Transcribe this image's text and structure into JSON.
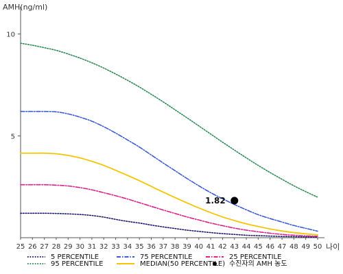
{
  "chart_data": {
    "type": "line",
    "title": "",
    "ylabel": "AMH(ng/ml)",
    "xlabel": "나이",
    "x": [
      25,
      26,
      27,
      28,
      29,
      30,
      31,
      32,
      33,
      34,
      35,
      36,
      37,
      38,
      39,
      40,
      41,
      42,
      43,
      44,
      45,
      46,
      47,
      48,
      49,
      50
    ],
    "x_tick_labels": [
      "25",
      "26",
      "27",
      "28",
      "29",
      "30",
      "31",
      "32",
      "33",
      "34",
      "35",
      "36",
      "37",
      "38",
      "39",
      "40",
      "41",
      "42",
      "43",
      "44",
      "45",
      "46",
      "47",
      "48",
      "49",
      "50"
    ],
    "y_ticks": [
      5,
      10
    ],
    "y_tick_labels": [
      "5",
      "10"
    ],
    "xlim": [
      25,
      50
    ],
    "ylim": [
      0,
      11
    ],
    "grid": false,
    "legend_position": "bottom",
    "series": [
      {
        "name": "5 PERCENTILE",
        "color": "#1a1a6e",
        "dash": "dot",
        "values": [
          1.2,
          1.2,
          1.2,
          1.19,
          1.17,
          1.14,
          1.09,
          1.01,
          0.9,
          0.8,
          0.72,
          0.62,
          0.53,
          0.45,
          0.37,
          0.31,
          0.25,
          0.2,
          0.16,
          0.12,
          0.1,
          0.08,
          0.06,
          0.05,
          0.04,
          0.03
        ]
      },
      {
        "name": "75 PERCENTILE",
        "color": "#3b5bd6",
        "dash": "dashdot",
        "values": [
          6.2,
          6.2,
          6.2,
          6.18,
          6.08,
          5.92,
          5.72,
          5.45,
          5.14,
          4.8,
          4.45,
          4.06,
          3.67,
          3.29,
          2.91,
          2.55,
          2.21,
          1.91,
          1.63,
          1.37,
          1.13,
          0.94,
          0.77,
          0.6,
          0.46,
          0.32
        ]
      },
      {
        "name": "25 PERCENTILE",
        "color": "#e0218a",
        "dash": "dashdot",
        "values": [
          2.6,
          2.6,
          2.6,
          2.58,
          2.54,
          2.46,
          2.35,
          2.21,
          2.06,
          1.9,
          1.72,
          1.54,
          1.36,
          1.19,
          1.02,
          0.87,
          0.72,
          0.59,
          0.47,
          0.37,
          0.29,
          0.22,
          0.16,
          0.12,
          0.09,
          0.07
        ]
      },
      {
        "name": "95 PERCENTILE",
        "color": "#2e8b57",
        "dash": "dot",
        "values": [
          9.55,
          9.45,
          9.33,
          9.2,
          9.02,
          8.82,
          8.59,
          8.33,
          8.04,
          7.73,
          7.4,
          7.04,
          6.67,
          6.28,
          5.89,
          5.49,
          5.09,
          4.69,
          4.3,
          3.92,
          3.55,
          3.2,
          2.87,
          2.55,
          2.26,
          1.99
        ]
      },
      {
        "name": "MEDIAN(50 PERCENTILE)",
        "color": "#f5c400",
        "dash": "solid",
        "values": [
          4.15,
          4.15,
          4.15,
          4.12,
          4.04,
          3.92,
          3.75,
          3.55,
          3.31,
          3.06,
          2.8,
          2.52,
          2.24,
          1.97,
          1.71,
          1.46,
          1.23,
          1.02,
          0.84,
          0.68,
          0.55,
          0.43,
          0.33,
          0.25,
          0.19,
          0.14
        ]
      }
    ],
    "markers": [
      {
        "name": "수진자의 AMH 농도",
        "color": "#000000",
        "x": 43,
        "y": 1.82,
        "label": "1.82"
      }
    ]
  }
}
